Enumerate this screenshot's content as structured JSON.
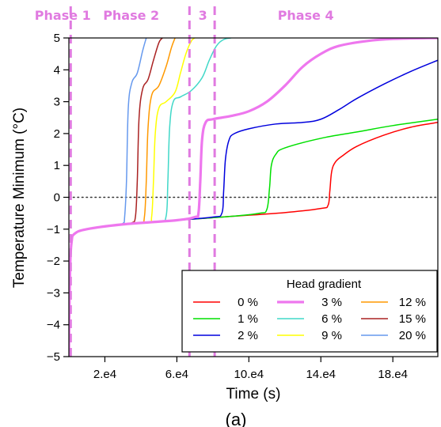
{
  "chart_data": {
    "type": "line",
    "xlabel": "Time (s)",
    "ylabel": "Temperature Minimum (°C)",
    "xlim": [
      0,
      205000
    ],
    "ylim": [
      -5,
      5
    ],
    "xticks": [
      20000,
      60000,
      100000,
      140000,
      180000
    ],
    "xtick_labels": [
      "2.e4",
      "6.e4",
      "10.e4",
      "14.e4",
      "18.e4"
    ],
    "yticks": [
      -5,
      -4,
      -3,
      -2,
      -1,
      0,
      1,
      2,
      3,
      4,
      5
    ],
    "ytick_labels": [
      "−5",
      "−4",
      "−3",
      "−2",
      "−1",
      "0",
      "1",
      "2",
      "3",
      "4",
      "5"
    ],
    "reference_line": {
      "y": 0,
      "style": "dotted",
      "color": "#333333"
    },
    "phase_lines": {
      "x": [
        1000,
        67000,
        81000
      ],
      "color": "#e07ae0"
    },
    "phase_labels": [
      {
        "text": "Phase 1",
        "x": -19000
      },
      {
        "text": "Phase 2",
        "x": 19000
      },
      {
        "text": "3",
        "x": 72000
      },
      {
        "text": "Phase 4",
        "x": 116000
      }
    ],
    "legend": {
      "title": "Head gradient",
      "position": "bottom-right",
      "columns": 3
    },
    "series": [
      {
        "name": "0 %",
        "color": "#ff0000",
        "width": 1.5,
        "points": [
          [
            0,
            -5
          ],
          [
            300,
            -3.5
          ],
          [
            800,
            -2
          ],
          [
            1500,
            -1.4
          ],
          [
            3000,
            -1.15
          ],
          [
            10000,
            -1.0
          ],
          [
            30000,
            -0.85
          ],
          [
            60000,
            -0.72
          ],
          [
            90000,
            -0.6
          ],
          [
            120000,
            -0.48
          ],
          [
            140000,
            -0.35
          ],
          [
            144000,
            -0.25
          ],
          [
            145000,
            0.2
          ],
          [
            146000,
            0.8
          ],
          [
            148000,
            1.1
          ],
          [
            152000,
            1.3
          ],
          [
            160000,
            1.6
          ],
          [
            175000,
            1.95
          ],
          [
            190000,
            2.2
          ],
          [
            205000,
            2.35
          ]
        ]
      },
      {
        "name": "1 %",
        "color": "#00e000",
        "width": 1.5,
        "points": [
          [
            0,
            -5
          ],
          [
            300,
            -3.5
          ],
          [
            800,
            -2
          ],
          [
            1500,
            -1.4
          ],
          [
            3000,
            -1.15
          ],
          [
            10000,
            -1.0
          ],
          [
            30000,
            -0.85
          ],
          [
            60000,
            -0.72
          ],
          [
            90000,
            -0.6
          ],
          [
            106000,
            -0.5
          ],
          [
            110000,
            -0.38
          ],
          [
            111500,
            0.3
          ],
          [
            112500,
            1.0
          ],
          [
            115000,
            1.35
          ],
          [
            120000,
            1.55
          ],
          [
            140000,
            1.85
          ],
          [
            160000,
            2.05
          ],
          [
            180000,
            2.25
          ],
          [
            205000,
            2.45
          ]
        ]
      },
      {
        "name": "2 %",
        "color": "#0000dd",
        "width": 1.5,
        "points": [
          [
            0,
            -5
          ],
          [
            300,
            -3.5
          ],
          [
            800,
            -2
          ],
          [
            1500,
            -1.4
          ],
          [
            3000,
            -1.15
          ],
          [
            10000,
            -1.0
          ],
          [
            30000,
            -0.85
          ],
          [
            60000,
            -0.72
          ],
          [
            80000,
            -0.62
          ],
          [
            85000,
            -0.5
          ],
          [
            86000,
            0.2
          ],
          [
            87000,
            1.2
          ],
          [
            89000,
            1.8
          ],
          [
            92000,
            2.0
          ],
          [
            100000,
            2.15
          ],
          [
            115000,
            2.3
          ],
          [
            130000,
            2.35
          ],
          [
            140000,
            2.45
          ],
          [
            150000,
            2.75
          ],
          [
            160000,
            3.1
          ],
          [
            175000,
            3.55
          ],
          [
            190000,
            3.95
          ],
          [
            205000,
            4.3
          ]
        ]
      },
      {
        "name": "3 %",
        "color": "#ee77ee",
        "width": 3.2,
        "points": [
          [
            0,
            -5
          ],
          [
            300,
            -3.5
          ],
          [
            800,
            -2
          ],
          [
            1500,
            -1.4
          ],
          [
            3000,
            -1.15
          ],
          [
            10000,
            -1.0
          ],
          [
            30000,
            -0.85
          ],
          [
            60000,
            -0.72
          ],
          [
            70000,
            -0.62
          ],
          [
            72000,
            -0.5
          ],
          [
            73000,
            0.5
          ],
          [
            74000,
            1.8
          ],
          [
            76000,
            2.35
          ],
          [
            80000,
            2.45
          ],
          [
            90000,
            2.55
          ],
          [
            100000,
            2.7
          ],
          [
            110000,
            3.0
          ],
          [
            120000,
            3.5
          ],
          [
            130000,
            4.1
          ],
          [
            140000,
            4.5
          ],
          [
            150000,
            4.75
          ],
          [
            165000,
            4.9
          ],
          [
            180000,
            4.97
          ],
          [
            205000,
            5.0
          ]
        ]
      },
      {
        "name": "6 %",
        "color": "#40d8c8",
        "width": 1.5,
        "points": [
          [
            0,
            -5
          ],
          [
            300,
            -3.5
          ],
          [
            800,
            -2
          ],
          [
            1500,
            -1.4
          ],
          [
            3000,
            -1.15
          ],
          [
            10000,
            -1.0
          ],
          [
            30000,
            -0.85
          ],
          [
            50000,
            -0.75
          ],
          [
            54000,
            -0.6
          ],
          [
            55000,
            0.5
          ],
          [
            56000,
            2.2
          ],
          [
            58000,
            3.0
          ],
          [
            62000,
            3.15
          ],
          [
            68000,
            3.35
          ],
          [
            74000,
            3.75
          ],
          [
            78000,
            4.3
          ],
          [
            82000,
            4.75
          ],
          [
            86000,
            4.95
          ],
          [
            90000,
            5.0
          ]
        ]
      },
      {
        "name": "9 %",
        "color": "#ffff00",
        "width": 1.5,
        "points": [
          [
            0,
            -5
          ],
          [
            300,
            -3.5
          ],
          [
            800,
            -2
          ],
          [
            1500,
            -1.4
          ],
          [
            3000,
            -1.15
          ],
          [
            10000,
            -1.0
          ],
          [
            30000,
            -0.85
          ],
          [
            44000,
            -0.78
          ],
          [
            46000,
            -0.6
          ],
          [
            47000,
            0.5
          ],
          [
            48000,
            2.0
          ],
          [
            50000,
            2.8
          ],
          [
            54000,
            3.0
          ],
          [
            59000,
            3.3
          ],
          [
            62000,
            3.9
          ],
          [
            65000,
            4.5
          ],
          [
            68000,
            4.9
          ],
          [
            70000,
            5.0
          ]
        ]
      },
      {
        "name": "12 %",
        "color": "#ff9900",
        "width": 1.5,
        "points": [
          [
            0,
            -5
          ],
          [
            300,
            -3.5
          ],
          [
            800,
            -2
          ],
          [
            1500,
            -1.4
          ],
          [
            3000,
            -1.15
          ],
          [
            10000,
            -1.0
          ],
          [
            30000,
            -0.85
          ],
          [
            40000,
            -0.8
          ],
          [
            42000,
            -0.6
          ],
          [
            43000,
            0.5
          ],
          [
            44000,
            2.2
          ],
          [
            46000,
            3.2
          ],
          [
            50000,
            3.5
          ],
          [
            54000,
            4.1
          ],
          [
            57000,
            4.7
          ],
          [
            59000,
            5.0
          ]
        ]
      },
      {
        "name": "15 %",
        "color": "#aa2222",
        "width": 1.5,
        "points": [
          [
            0,
            -5
          ],
          [
            300,
            -3.5
          ],
          [
            800,
            -2
          ],
          [
            1500,
            -1.4
          ],
          [
            3000,
            -1.15
          ],
          [
            10000,
            -1.0
          ],
          [
            30000,
            -0.85
          ],
          [
            35000,
            -0.8
          ],
          [
            37000,
            -0.6
          ],
          [
            38000,
            0.5
          ],
          [
            39000,
            2.5
          ],
          [
            41000,
            3.4
          ],
          [
            44000,
            3.7
          ],
          [
            47000,
            4.3
          ],
          [
            50000,
            4.85
          ],
          [
            52000,
            5.0
          ]
        ]
      },
      {
        "name": "20 %",
        "color": "#6699ee",
        "width": 1.5,
        "points": [
          [
            0,
            -5
          ],
          [
            300,
            -3.5
          ],
          [
            800,
            -2
          ],
          [
            1500,
            -1.4
          ],
          [
            3000,
            -1.15
          ],
          [
            10000,
            -1.0
          ],
          [
            25000,
            -0.88
          ],
          [
            30000,
            -0.82
          ],
          [
            31000,
            -0.6
          ],
          [
            32000,
            0.5
          ],
          [
            33000,
            2.8
          ],
          [
            35000,
            3.6
          ],
          [
            38000,
            3.9
          ],
          [
            41000,
            4.6
          ],
          [
            43000,
            5.0
          ]
        ]
      }
    ]
  },
  "panel_label": "(a)"
}
